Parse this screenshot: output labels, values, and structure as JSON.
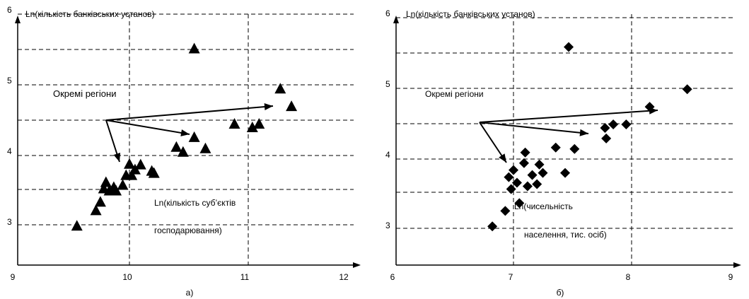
{
  "chart_data": [
    {
      "type": "scatter",
      "panel_label": "а)",
      "ylabel": "Ln(кількість банківських установ)",
      "xlabel_line1": "Ln(кількість суб’єктів",
      "xlabel_line2": "господарювання)",
      "annotation": "Окремі регіони",
      "xlim": [
        9,
        12.2
      ],
      "ylim": [
        2.5,
        6
      ],
      "x_ticks": [
        "9",
        "10",
        "11",
        "12"
      ],
      "y_ticks": [
        "3",
        "4",
        "5",
        "6"
      ],
      "marker": "triangle",
      "color": "#000000",
      "points": [
        [
          9.53,
          3.0
        ],
        [
          9.7,
          3.22
        ],
        [
          9.74,
          3.34
        ],
        [
          9.77,
          3.53
        ],
        [
          9.79,
          3.62
        ],
        [
          9.82,
          3.5
        ],
        [
          9.86,
          3.55
        ],
        [
          9.88,
          3.5
        ],
        [
          9.94,
          3.58
        ],
        [
          9.97,
          3.72
        ],
        [
          10.0,
          3.88
        ],
        [
          10.02,
          3.72
        ],
        [
          10.05,
          3.8
        ],
        [
          10.1,
          3.87
        ],
        [
          10.2,
          3.78
        ],
        [
          10.22,
          3.75
        ],
        [
          10.42,
          4.12
        ],
        [
          10.48,
          4.05
        ],
        [
          10.58,
          4.26
        ],
        [
          10.68,
          4.1
        ],
        [
          10.58,
          5.52
        ],
        [
          10.94,
          4.45
        ],
        [
          11.1,
          4.4
        ],
        [
          11.16,
          4.45
        ],
        [
          11.35,
          4.95
        ],
        [
          11.45,
          4.7
        ]
      ]
    },
    {
      "type": "scatter",
      "panel_label": "б)",
      "ylabel": "Ln(кількість банківських  установ)",
      "xlabel_line1": "Ln(чисельність",
      "xlabel_line2": "населення, тис. осіб)",
      "annotation": "Окремі регіони",
      "xlim": [
        6,
        9.2
      ],
      "ylim": [
        2.5,
        6
      ],
      "x_ticks": [
        "6",
        "7",
        "8",
        "9"
      ],
      "y_ticks": [
        "3",
        "4",
        "5",
        "6"
      ],
      "marker": "diamond",
      "color": "#000000",
      "points": [
        [
          6.82,
          3.0
        ],
        [
          6.93,
          3.22
        ],
        [
          6.96,
          3.7
        ],
        [
          6.98,
          3.53
        ],
        [
          7.0,
          3.8
        ],
        [
          7.03,
          3.62
        ],
        [
          7.05,
          3.33
        ],
        [
          7.09,
          3.9
        ],
        [
          7.1,
          4.05
        ],
        [
          7.12,
          3.57
        ],
        [
          7.16,
          3.73
        ],
        [
          7.2,
          3.6
        ],
        [
          7.22,
          3.88
        ],
        [
          7.25,
          3.76
        ],
        [
          7.36,
          4.12
        ],
        [
          7.44,
          3.76
        ],
        [
          7.52,
          4.1
        ],
        [
          7.47,
          5.55
        ],
        [
          7.78,
          4.4
        ],
        [
          7.79,
          4.25
        ],
        [
          7.85,
          4.45
        ],
        [
          7.96,
          4.45
        ],
        [
          8.16,
          4.7
        ],
        [
          8.48,
          4.95
        ]
      ]
    }
  ]
}
